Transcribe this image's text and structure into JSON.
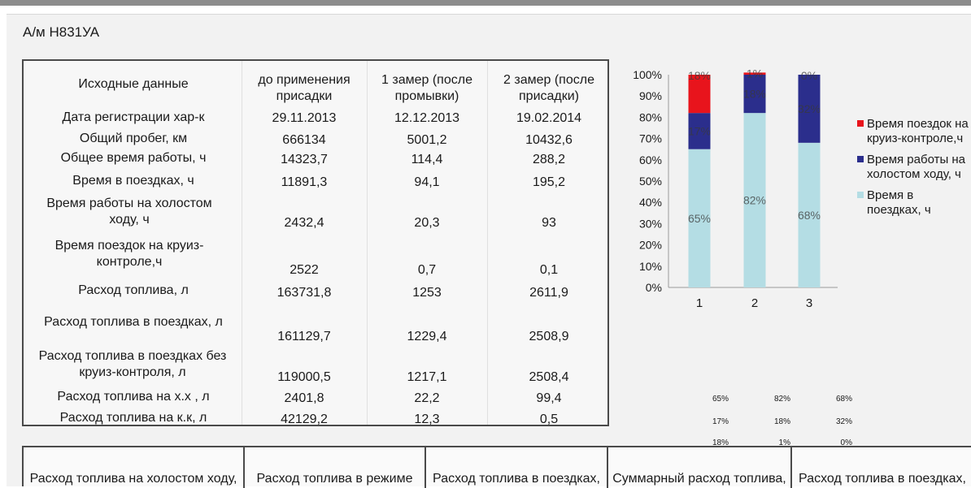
{
  "vehicle": "А/м Н831УА",
  "table": {
    "headers": [
      "Исходные данные",
      "до применения присадки",
      "1 замер (после промывки)",
      "2 замер (после присадки)"
    ],
    "rows": [
      {
        "label": "Дата регистрации хар-к",
        "values": [
          "29.11.2013",
          "12.12.2013",
          "19.02.2014"
        ]
      },
      {
        "label": "Общий пробег, км",
        "values": [
          "666134",
          "5001,2",
          "10432,6"
        ]
      },
      {
        "label": "Общее время работы, ч",
        "values": [
          "14323,7",
          "114,4",
          "288,2"
        ]
      },
      {
        "label": "Время в поездках, ч",
        "values": [
          "11891,3",
          "94,1",
          "195,2"
        ]
      },
      {
        "label": "Время работы на холостом ходу, ч",
        "values": [
          "2432,4",
          "20,3",
          "93"
        ]
      },
      {
        "label": "Время поездок на круиз-контроле,ч",
        "values": [
          "2522",
          "0,7",
          "0,1"
        ]
      },
      {
        "label": "Расход топлива, л",
        "values": [
          "163731,8",
          "1253",
          "2611,9"
        ]
      },
      {
        "label": "Расход топлива в поездках, л",
        "values": [
          "161129,7",
          "1229,4",
          "2508,9"
        ]
      },
      {
        "label": "Расход топлива в поездках без круиз-контроля, л",
        "values": [
          "119000,5",
          "1217,1",
          "2508,4"
        ]
      },
      {
        "label": "Расход топлива на х.х , л",
        "values": [
          "2401,8",
          "22,2",
          "99,4"
        ]
      },
      {
        "label": "Расход топлива на к.к, л",
        "values": [
          "42129,2",
          "12,3",
          "0,5"
        ]
      }
    ]
  },
  "chart_data": {
    "type": "bar",
    "stacked": true,
    "categories": [
      "1",
      "2",
      "3"
    ],
    "yticks": [
      "0%",
      "10%",
      "20%",
      "30%",
      "40%",
      "50%",
      "60%",
      "70%",
      "80%",
      "90%",
      "100%"
    ],
    "ylim": [
      0,
      100
    ],
    "legend_position": "right",
    "series": [
      {
        "name": "Время в поездках, ч",
        "values": [
          65,
          82,
          68
        ],
        "labels": [
          "65%",
          "82%",
          "68%"
        ],
        "color": "#b4dde4"
      },
      {
        "name": "Время работы на холостом ходу, ч",
        "values": [
          17,
          18,
          32
        ],
        "labels": [
          "17%",
          "18%",
          "32%"
        ],
        "color": "#2b2e8c"
      },
      {
        "name": "Время поездок на круиз-контроле,ч",
        "values": [
          18,
          1,
          0
        ],
        "labels": [
          "18%",
          "1%",
          "0%"
        ],
        "color": "#e8141c"
      }
    ]
  },
  "legend": [
    {
      "name": "Время поездок на круиз-контроле,ч",
      "color": "#e8141c"
    },
    {
      "name": "Время работы на холостом ходу, ч",
      "color": "#2b2e8c"
    },
    {
      "name": "Время в поездках, ч",
      "color": "#b4dde4"
    }
  ],
  "mini_table": [
    [
      "65%",
      "82%",
      "68%"
    ],
    [
      "17%",
      "18%",
      "32%"
    ],
    [
      "18%",
      "1%",
      "0%"
    ]
  ],
  "bottom_headers": [
    "Расход топлива на холостом ходу,",
    "Расход топлива в режиме",
    "Расход топлива в поездках,",
    "Суммарный расход топлива,",
    "Расход топлива в поездках,"
  ]
}
